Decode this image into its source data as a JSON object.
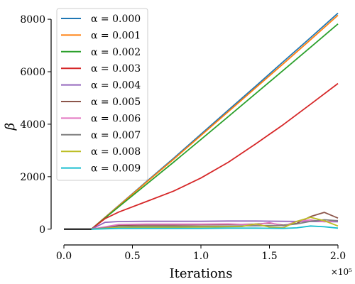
{
  "chart_data": {
    "type": "line",
    "xlabel": "Iterations",
    "ylabel": "β",
    "x_multiplier_label": "×10⁵",
    "xlim": [
      0,
      200000
    ],
    "ylim": [
      -250,
      8300
    ],
    "x_ticks": [
      0,
      50000,
      100000,
      150000,
      200000
    ],
    "x_tick_labels": [
      "0.0",
      "0.5",
      "1.0",
      "1.5",
      "2.0"
    ],
    "y_ticks": [
      0,
      2000,
      4000,
      6000,
      8000
    ],
    "y_tick_labels": [
      "0",
      "2000",
      "4000",
      "6000",
      "8000"
    ],
    "grid": false,
    "legend_position": "top-left",
    "initial_segment": {
      "color": "#000000",
      "x": [
        0,
        20000
      ],
      "y": [
        0,
        0
      ]
    },
    "series": [
      {
        "name": "α = 0.000",
        "color": "#1f77b4",
        "x": [
          20000,
          40000,
          60000,
          80000,
          100000,
          120000,
          140000,
          160000,
          180000,
          200000
        ],
        "y": [
          0,
          900,
          1800,
          2700,
          3620,
          4540,
          5450,
          6380,
          7300,
          8230
        ]
      },
      {
        "name": "α = 0.001",
        "color": "#ff7f0e",
        "x": [
          20000,
          40000,
          60000,
          80000,
          100000,
          120000,
          140000,
          160000,
          180000,
          200000
        ],
        "y": [
          0,
          890,
          1780,
          2660,
          3570,
          4480,
          5390,
          6300,
          7220,
          8150
        ]
      },
      {
        "name": "α = 0.002",
        "color": "#2ca02c",
        "x": [
          20000,
          40000,
          60000,
          80000,
          100000,
          120000,
          140000,
          160000,
          180000,
          200000
        ],
        "y": [
          0,
          850,
          1700,
          2550,
          3420,
          4290,
          5170,
          6050,
          6930,
          7820
        ]
      },
      {
        "name": "α = 0.003",
        "color": "#d62728",
        "x": [
          20000,
          30000,
          40000,
          60000,
          80000,
          100000,
          120000,
          140000,
          160000,
          180000,
          200000
        ],
        "y": [
          0,
          400,
          650,
          1050,
          1450,
          1950,
          2550,
          3250,
          3980,
          4760,
          5550
        ]
      },
      {
        "name": "α = 0.004",
        "color": "#9467bd",
        "x": [
          20000,
          30000,
          40000,
          60000,
          80000,
          100000,
          120000,
          140000,
          160000,
          180000,
          200000
        ],
        "y": [
          0,
          260,
          290,
          300,
          300,
          300,
          310,
          310,
          300,
          290,
          280
        ]
      },
      {
        "name": "α = 0.005",
        "color": "#8c564b",
        "x": [
          20000,
          40000,
          60000,
          80000,
          100000,
          120000,
          140000,
          150000,
          160000,
          170000,
          180000,
          190000,
          200000
        ],
        "y": [
          0,
          150,
          160,
          160,
          170,
          180,
          190,
          230,
          150,
          220,
          480,
          640,
          420
        ]
      },
      {
        "name": "α = 0.006",
        "color": "#e377c2",
        "x": [
          20000,
          40000,
          60000,
          80000,
          100000,
          120000,
          140000,
          150000,
          160000,
          170000,
          180000,
          190000,
          200000
        ],
        "y": [
          0,
          180,
          190,
          190,
          190,
          200,
          170,
          250,
          120,
          300,
          350,
          280,
          330
        ]
      },
      {
        "name": "α = 0.007",
        "color": "#7f7f7f",
        "x": [
          20000,
          40000,
          60000,
          80000,
          100000,
          120000,
          140000,
          160000,
          170000,
          180000,
          190000,
          200000
        ],
        "y": [
          0,
          100,
          110,
          110,
          110,
          120,
          130,
          140,
          200,
          300,
          360,
          320
        ]
      },
      {
        "name": "α = 0.008",
        "color": "#bcbd22",
        "x": [
          20000,
          40000,
          60000,
          80000,
          100000,
          120000,
          130000,
          140000,
          150000,
          160000,
          170000,
          180000,
          190000,
          200000
        ],
        "y": [
          0,
          60,
          70,
          70,
          80,
          90,
          100,
          200,
          80,
          50,
          300,
          450,
          320,
          120
        ]
      },
      {
        "name": "α = 0.009",
        "color": "#17becf",
        "x": [
          20000,
          40000,
          60000,
          80000,
          100000,
          120000,
          140000,
          160000,
          170000,
          180000,
          190000,
          200000
        ],
        "y": [
          0,
          30,
          30,
          30,
          30,
          40,
          40,
          30,
          50,
          120,
          90,
          40
        ]
      }
    ]
  }
}
